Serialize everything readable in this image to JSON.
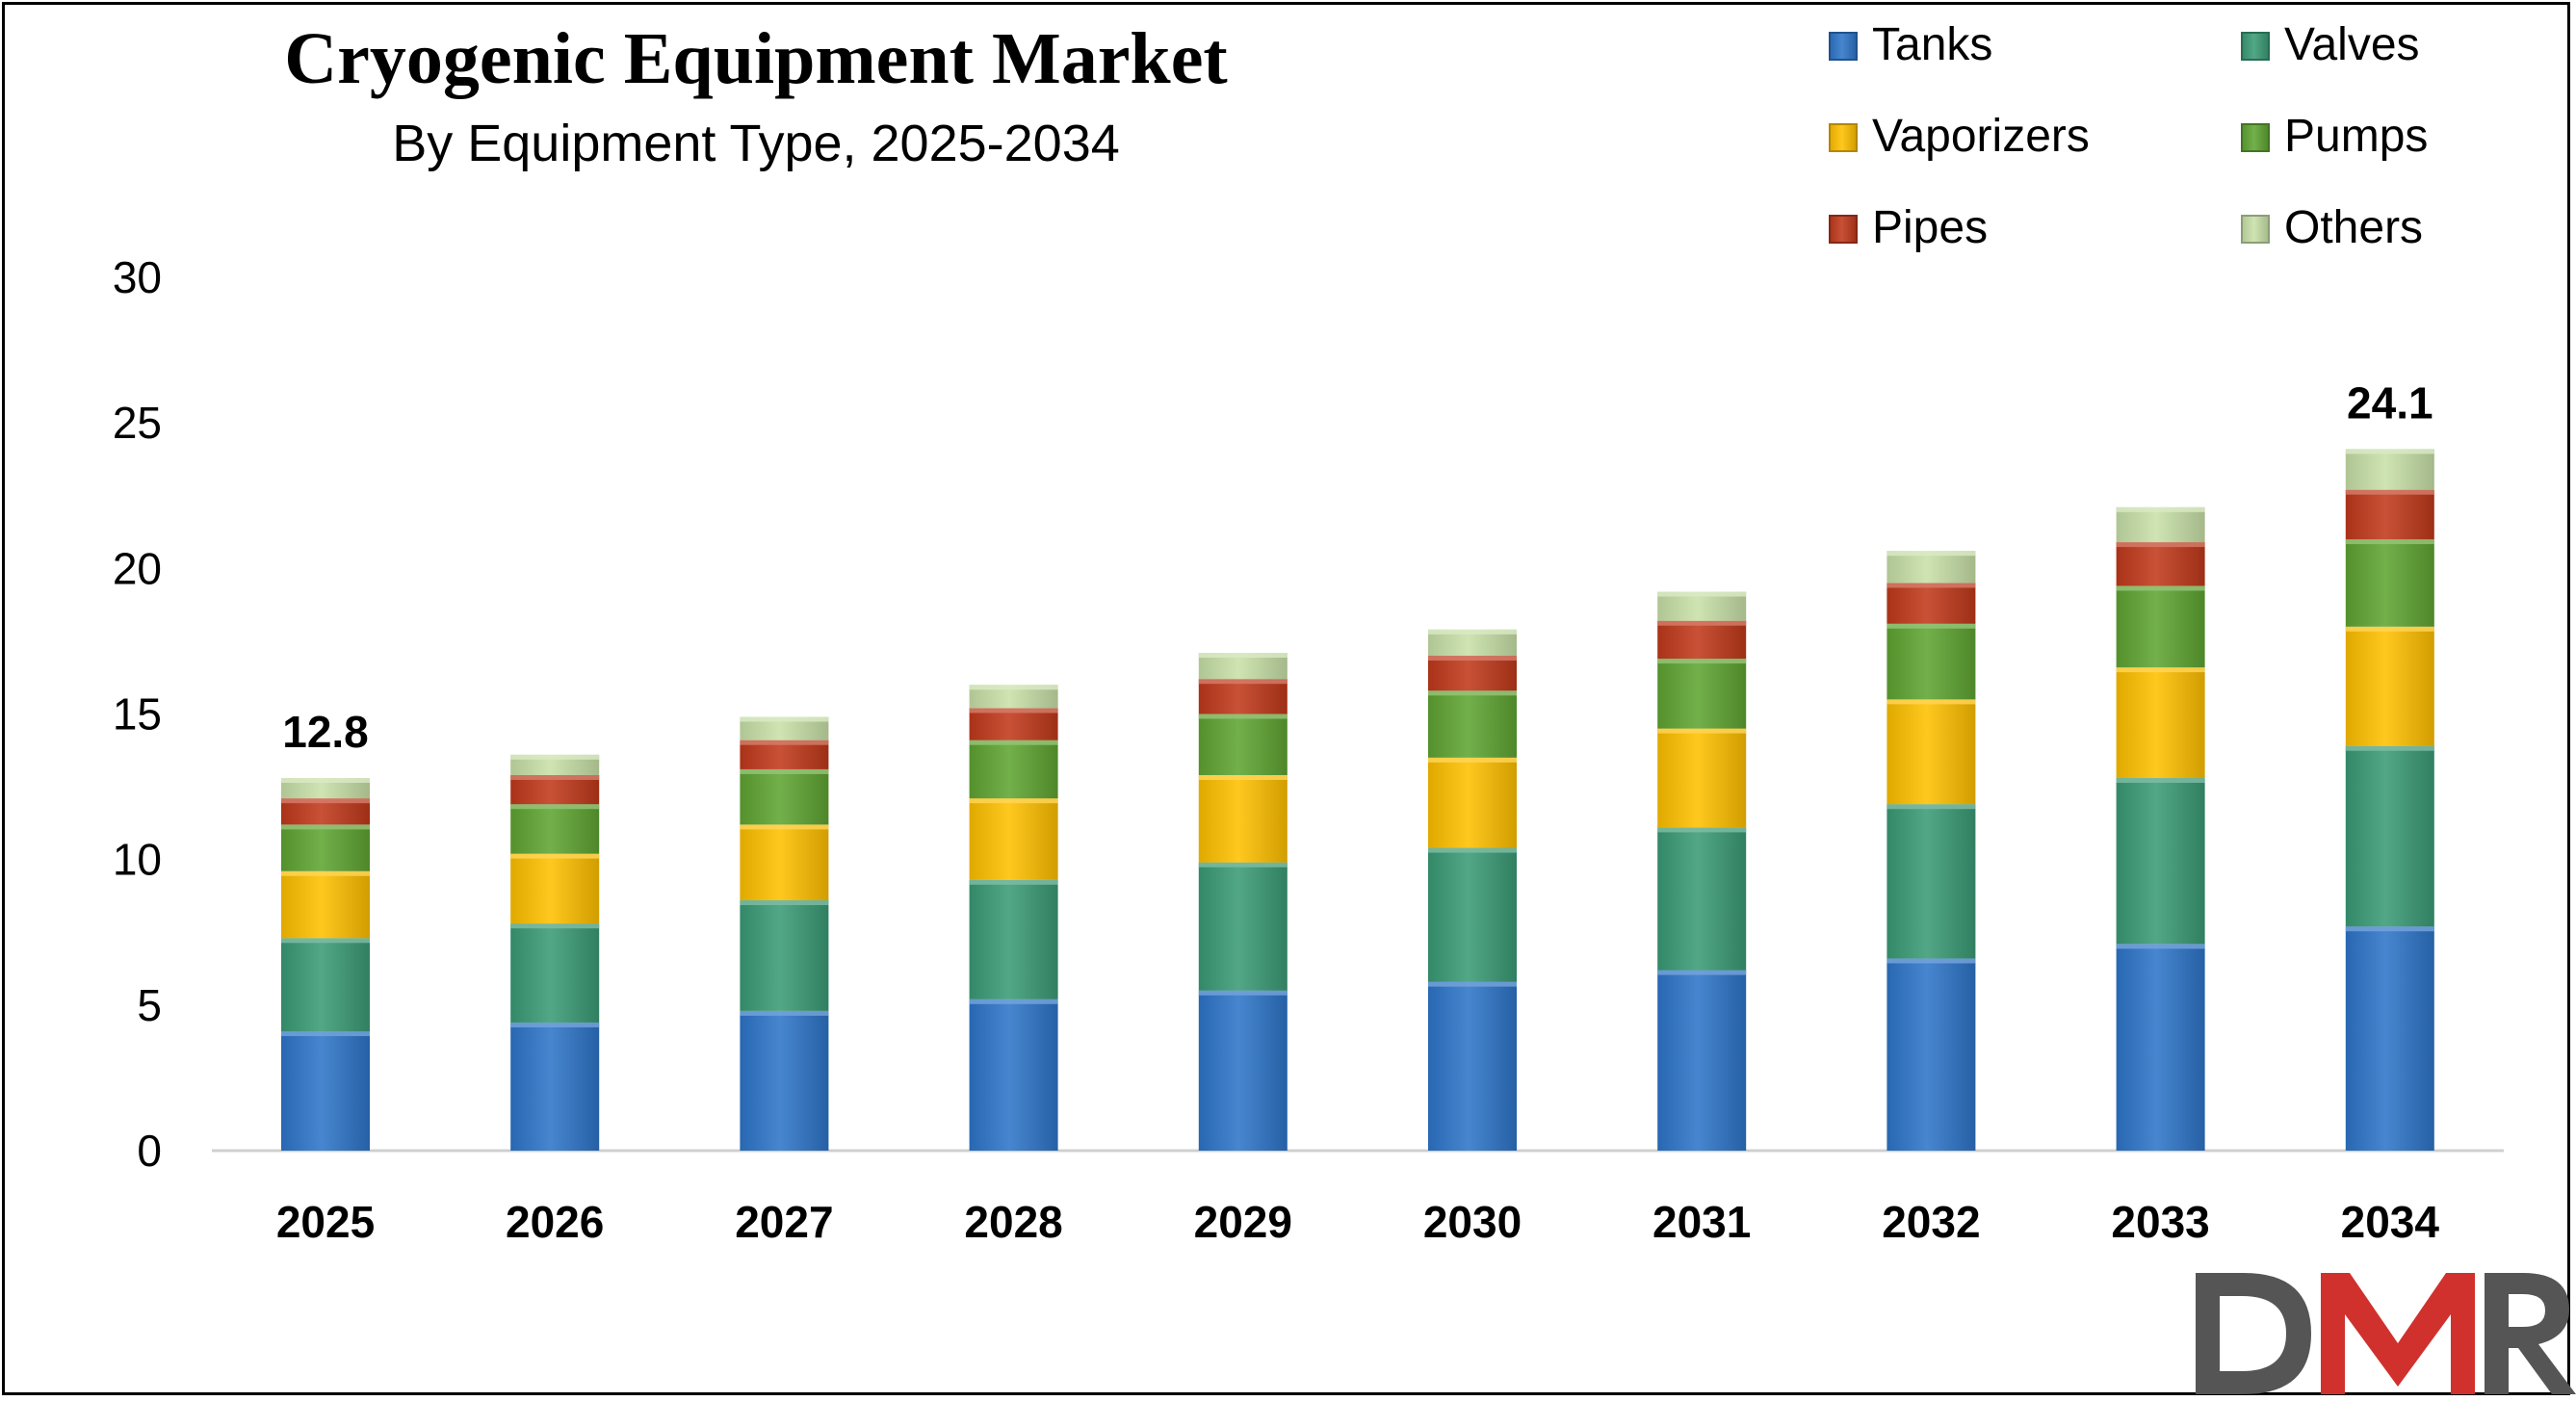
{
  "chart_data": {
    "type": "bar",
    "stacked": true,
    "title": "Cryogenic Equipment Market",
    "subtitle": "By Equipment Type, 2025-2034",
    "xlabel": "",
    "ylabel": "",
    "ylim": [
      0,
      30
    ],
    "yticks": [
      0,
      5,
      10,
      15,
      20,
      25,
      30
    ],
    "grid": false,
    "legend_position": "top-right",
    "categories": [
      "2025",
      "2026",
      "2027",
      "2028",
      "2029",
      "2030",
      "2031",
      "2032",
      "2033",
      "2034"
    ],
    "series": [
      {
        "name": "Tanks",
        "color": "#2E75C9",
        "values": [
          4.1,
          4.4,
          4.8,
          5.2,
          5.5,
          5.8,
          6.2,
          6.6,
          7.1,
          7.7
        ]
      },
      {
        "name": "Valves",
        "color": "#3A9B76",
        "values": [
          3.2,
          3.4,
          3.8,
          4.1,
          4.4,
          4.6,
          4.9,
          5.3,
          5.7,
          6.2
        ]
      },
      {
        "name": "Vaporizers",
        "color": "#FFC000",
        "values": [
          2.3,
          2.4,
          2.6,
          2.8,
          3.0,
          3.1,
          3.4,
          3.6,
          3.8,
          4.1
        ]
      },
      {
        "name": "Pumps",
        "color": "#5FA532",
        "values": [
          1.6,
          1.7,
          1.9,
          2.0,
          2.1,
          2.3,
          2.4,
          2.6,
          2.8,
          3.0
        ]
      },
      {
        "name": "Pipes",
        "color": "#C0391B",
        "values": [
          0.9,
          1.0,
          1.0,
          1.1,
          1.2,
          1.2,
          1.3,
          1.4,
          1.5,
          1.7
        ]
      },
      {
        "name": "Others",
        "color": "#C8E0A8",
        "values": [
          0.7,
          0.7,
          0.8,
          0.8,
          0.9,
          0.9,
          1.0,
          1.1,
          1.2,
          1.4
        ]
      }
    ],
    "annotations": [
      {
        "category": "2025",
        "text": "12.8"
      },
      {
        "category": "2034",
        "text": "24.1"
      }
    ]
  },
  "logo": {
    "text": "DMR",
    "colors": [
      "#555555",
      "#D0312D",
      "#555555"
    ]
  }
}
